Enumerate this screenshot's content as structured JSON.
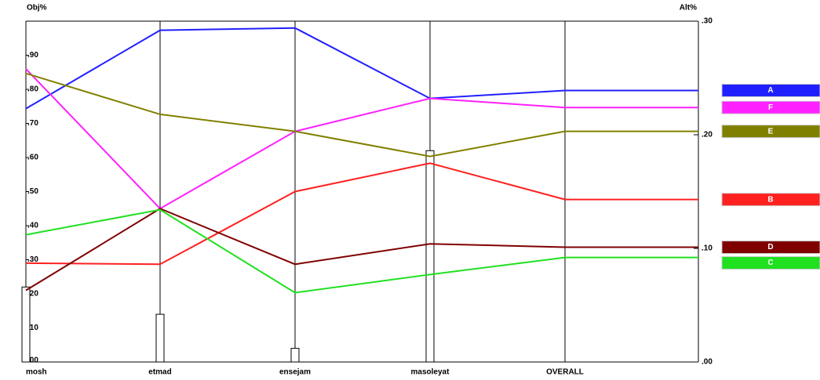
{
  "chart_data": {
    "type": "line",
    "ylabel": "Obj%",
    "y2label": "Alt%",
    "categories": [
      "mosh",
      "etmad",
      "ensejam",
      "masoleyat",
      "OVERALL"
    ],
    "ylim": [
      0,
      1
    ],
    "yticks": [
      {
        "value": 0,
        "label": ".00"
      },
      {
        "value": 0.1,
        "label": ".10"
      },
      {
        "value": 0.2,
        "label": ".20"
      },
      {
        "value": 0.3,
        "label": ".30"
      },
      {
        "value": 0.4,
        "label": ".40"
      },
      {
        "value": 0.5,
        "label": ".50"
      },
      {
        "value": 0.6,
        "label": ".60"
      },
      {
        "value": 0.7,
        "label": ".70"
      },
      {
        "value": 0.8,
        "label": ".80"
      },
      {
        "value": 0.9,
        "label": ".90"
      }
    ],
    "y2lim": [
      0,
      0.3
    ],
    "y2ticks": [
      {
        "value": 0,
        "label": ".00"
      },
      {
        "value": 0.1,
        "label": ".10"
      },
      {
        "value": 0.2,
        "label": ".20"
      },
      {
        "value": 0.3,
        "label": ".30"
      }
    ],
    "bar_values": [
      0.22,
      0.14,
      0.04,
      0.62,
      null
    ],
    "bar_color": "#ffffff",
    "series": [
      {
        "name": "A",
        "color": "#2020ff",
        "axis": "y2",
        "values": [
          0.223,
          0.292,
          0.294,
          0.232,
          0.239
        ]
      },
      {
        "name": "F",
        "color": "#ff20ff",
        "axis": "y2",
        "values": [
          0.258,
          0.135,
          0.203,
          0.232,
          0.224
        ]
      },
      {
        "name": "E",
        "color": "#808000",
        "axis": "y2",
        "values": [
          0.254,
          0.218,
          0.203,
          0.181,
          0.203
        ]
      },
      {
        "name": "B",
        "color": "#ff2020",
        "axis": "y2",
        "values": [
          0.087,
          0.086,
          0.15,
          0.175,
          0.143
        ]
      },
      {
        "name": "D",
        "color": "#800000",
        "axis": "y2",
        "values": [
          0.063,
          0.135,
          0.086,
          0.104,
          0.101
        ]
      },
      {
        "name": "C",
        "color": "#20e020",
        "axis": "y2",
        "values": [
          0.112,
          0.134,
          0.061,
          0.077,
          0.092
        ]
      }
    ]
  }
}
